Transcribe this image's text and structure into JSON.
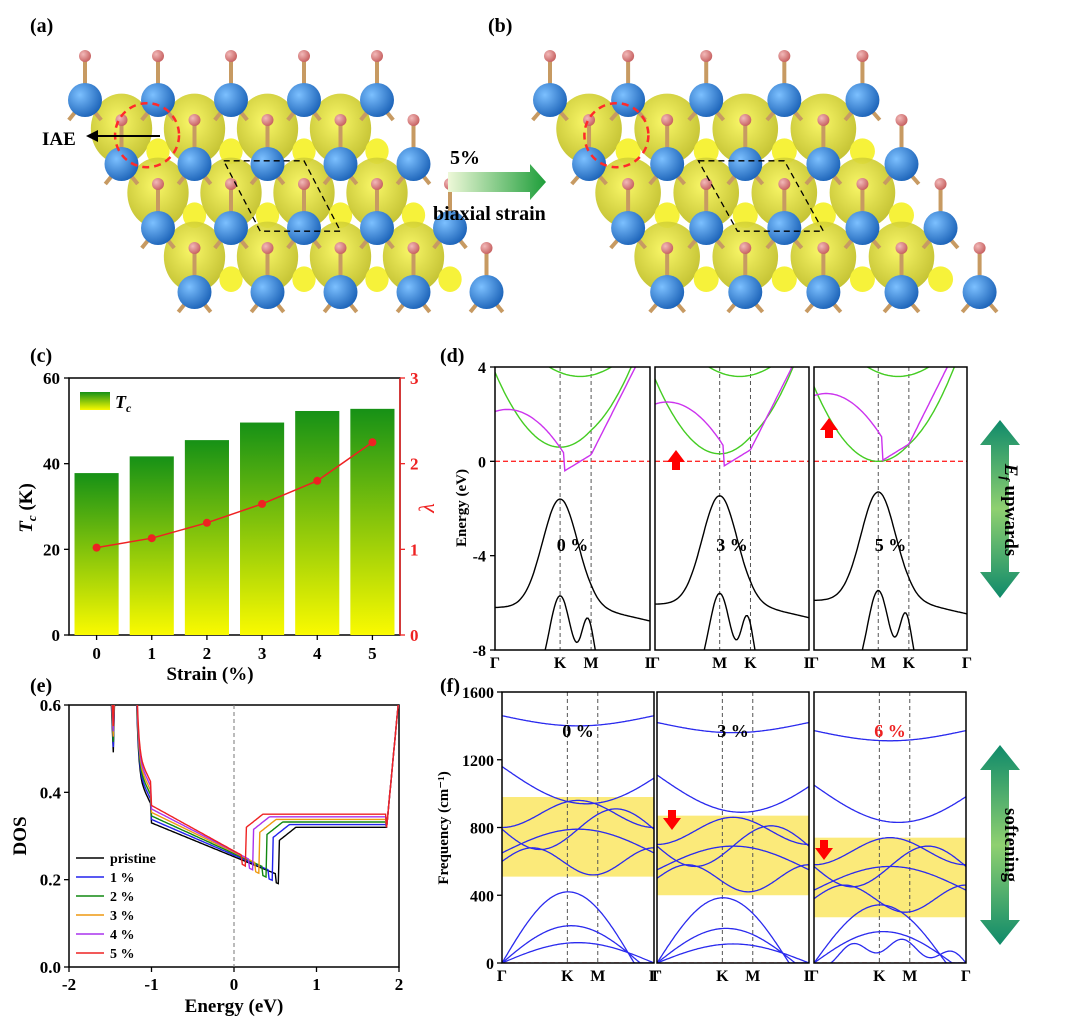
{
  "panel_labels": {
    "a": "(a)",
    "b": "(b)",
    "c": "(c)",
    "d": "(d)",
    "e": "(e)",
    "f": "(f)"
  },
  "colors": {
    "atom_blue": "#2a7fd0",
    "atom_pink": "#d98080",
    "bond": "#c79a62",
    "iso_yellow": "#e4e23a",
    "dashed_red": "#ff2a2a",
    "band_green": "#44cc22",
    "band_magenta": "#cc33ee",
    "band_black": "#000000",
    "phonon_blue": "#2a2aee",
    "highlight_yellow": "#fbea7a",
    "red_arrow": "#ff0000",
    "bar_top": "#169116",
    "bar_bottom": "#fafa00",
    "lambda_red": "#ee2222"
  },
  "structure": {
    "iae_label": "IAE",
    "strain_percent": "5%",
    "strain_text": "biaxial strain"
  },
  "chart_data": [
    {
      "panel": "c",
      "type": "bar",
      "xlabel": "Strain (%)",
      "ylabel": "T_c (K)",
      "y2label": "λ",
      "legend": "T_c",
      "legend_placement": "top-left",
      "categories": [
        "0",
        "1",
        "2",
        "3",
        "4",
        "5"
      ],
      "x_ticks": [
        "0",
        "1",
        "2",
        "3",
        "4",
        "5"
      ],
      "y_ticks": [
        "0",
        "20",
        "40",
        "60"
      ],
      "y2_ticks": [
        "0",
        "1",
        "2",
        "3"
      ],
      "ylim": [
        0,
        60
      ],
      "y2lim": [
        0,
        3
      ],
      "series": [
        {
          "name": "T_c",
          "axis": "left",
          "values": [
            37.8,
            41.7,
            45.5,
            49.6,
            52.3,
            52.8
          ]
        },
        {
          "name": "λ",
          "axis": "right",
          "values": [
            1.02,
            1.13,
            1.31,
            1.53,
            1.8,
            2.25
          ]
        }
      ]
    },
    {
      "panel": "d",
      "type": "line",
      "ylabel": "Energy (eV)",
      "ylim": [
        -8,
        4
      ],
      "y_ticks": [
        "4",
        "0",
        "-4",
        "-8"
      ],
      "fermi_level": 0,
      "side_label": "E_f upwards",
      "subpanels": [
        {
          "label": "0 %",
          "kpath": [
            "Γ",
            "K",
            "M",
            "Γ"
          ]
        },
        {
          "label": "3 %",
          "kpath": [
            "Γ",
            "M",
            "K",
            "Γ"
          ]
        },
        {
          "label": "5 %",
          "kpath": [
            "Γ",
            "M",
            "K",
            "Γ"
          ]
        }
      ]
    },
    {
      "panel": "e",
      "type": "line",
      "xlabel": "Energy (eV)",
      "ylabel": "DOS",
      "xlim": [
        -2,
        2
      ],
      "ylim": [
        0,
        0.6
      ],
      "x_ticks": [
        "-2",
        "-1",
        "0",
        "1",
        "2"
      ],
      "y_ticks": [
        "0.0",
        "0.2",
        "0.4",
        "0.6"
      ],
      "legend_placement": "bottom-left",
      "series": [
        {
          "name": "pristine",
          "color": "#000000",
          "shift": 0.0
        },
        {
          "name": "1 %",
          "color": "#2222ee",
          "shift": -0.08
        },
        {
          "name": "2 %",
          "color": "#118811",
          "shift": -0.16
        },
        {
          "name": "3 %",
          "color": "#ee9911",
          "shift": -0.24
        },
        {
          "name": "4 %",
          "color": "#aa33ee",
          "shift": -0.32
        },
        {
          "name": "5 %",
          "color": "#ee2222",
          "shift": -0.4
        }
      ]
    },
    {
      "panel": "f",
      "type": "line",
      "ylabel": "Frequency (cm⁻¹)",
      "ylim": [
        0,
        1600
      ],
      "y_ticks": [
        "0",
        "400",
        "800",
        "1200",
        "1600"
      ],
      "side_label": "softening",
      "subpanels": [
        {
          "label": "0 %",
          "kpath": [
            "Γ",
            "K",
            "M",
            "Γ"
          ],
          "highlight": [
            510,
            980
          ]
        },
        {
          "label": "3 %",
          "kpath": [
            "Γ",
            "K",
            "M",
            "Γ"
          ],
          "highlight": [
            400,
            870
          ]
        },
        {
          "label": "6 %",
          "kpath": [
            "Γ",
            "K",
            "M",
            "Γ"
          ],
          "highlight": [
            270,
            740
          ]
        }
      ]
    }
  ]
}
